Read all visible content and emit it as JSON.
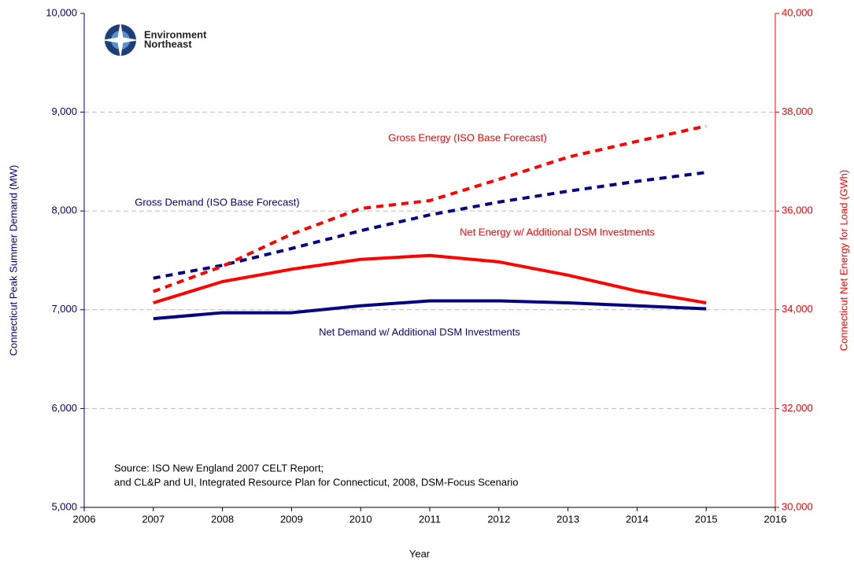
{
  "chart_data": {
    "type": "line",
    "x_label": "Year",
    "y_label": "Connecticut Peak Summer Demand (MW)",
    "y2_label": "Connecticut Net Energy for Load (GWh)",
    "logo": [
      "Environment",
      "Northeast"
    ],
    "source": [
      "Source: ISO New England 2007 CELT Report;",
      "and CL&P and UI, Integrated Resource Plan for Connecticut, 2008, DSM-Focus Scenario"
    ],
    "annotations": [
      {
        "text": "Gross Energy (ISO Base Forecast)",
        "color": "#ff0000"
      },
      {
        "text": "Gross Demand (ISO Base Forecast)",
        "color": "#000080"
      },
      {
        "text": "Net Energy w/ Additional DSM Investments",
        "color": "#ff0000"
      },
      {
        "text": "Net Demand w/ Additional DSM Investments",
        "color": "#000080"
      }
    ],
    "x": [
      2007,
      2008,
      2009,
      2010,
      2011,
      2012,
      2013,
      2014,
      2015
    ],
    "series": [
      {
        "name": "Gross Demand (ISO Base Forecast)",
        "color": "#000080",
        "dashed": true,
        "axis": "y",
        "values": [
          7320,
          7450,
          7620,
          7800,
          7960,
          8090,
          8200,
          8300,
          8390
        ]
      },
      {
        "name": "Net Demand w/ Additional DSM Investments",
        "color": "#000080",
        "dashed": false,
        "axis": "y",
        "values": [
          6910,
          6970,
          6970,
          7040,
          7090,
          7090,
          7070,
          7040,
          7010
        ]
      },
      {
        "name": "Gross Energy (ISO Base Forecast)",
        "color": "#ff0000",
        "dashed": true,
        "axis": "y2",
        "values": [
          34370,
          34880,
          35530,
          36050,
          36210,
          36640,
          37090,
          37410,
          37720
        ]
      },
      {
        "name": "Net Energy w/ Additional DSM Investments",
        "color": "#ff0000",
        "dashed": false,
        "axis": "y2",
        "values": [
          34140,
          34570,
          34820,
          35020,
          35100,
          34970,
          34700,
          34380,
          34140
        ]
      }
    ],
    "xlim": [
      2006,
      2016
    ],
    "xticks": [
      2006,
      2007,
      2008,
      2009,
      2010,
      2011,
      2012,
      2013,
      2014,
      2015,
      2016
    ],
    "ylim": [
      5000,
      10000
    ],
    "yticks": [
      {
        "value": 5000,
        "label": "5,000"
      },
      {
        "value": 6000,
        "label": "6,000"
      },
      {
        "value": 7000,
        "label": "7,000"
      },
      {
        "value": 8000,
        "label": "8,000"
      },
      {
        "value": 9000,
        "label": "9,000"
      },
      {
        "value": 10000,
        "label": "10,000"
      }
    ],
    "y2lim": [
      30000,
      40000
    ],
    "y2ticks": [
      {
        "value": 30000,
        "label": "30,000"
      },
      {
        "value": 32000,
        "label": "32,000"
      },
      {
        "value": 34000,
        "label": "34,000"
      },
      {
        "value": 36000,
        "label": "36,000"
      },
      {
        "value": 38000,
        "label": "38,000"
      },
      {
        "value": 40000,
        "label": "40,000"
      }
    ],
    "y_color": "#000080",
    "y2_color": "#ff0000",
    "grid": true
  }
}
